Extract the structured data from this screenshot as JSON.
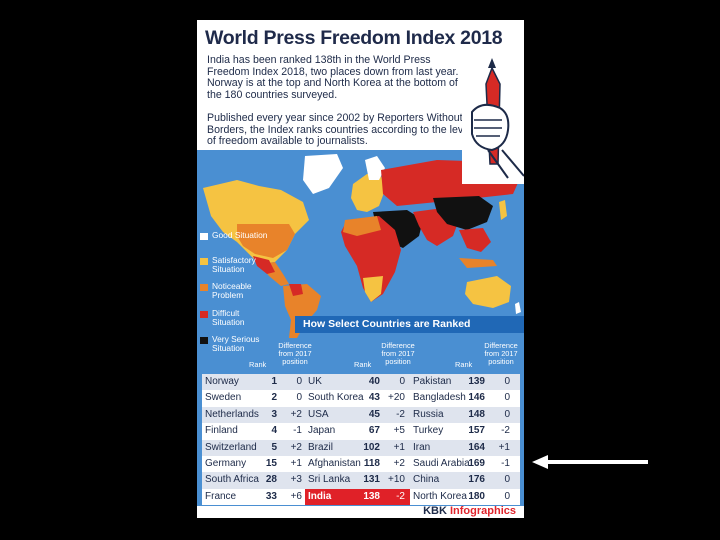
{
  "title": "World Press Freedom Index 2018",
  "intro": "India has been ranked 138th in the World Press Freedom Index 2018, two places down from last year. Norway is at the top and North Korea at the bottom of the 180 countries surveyed.",
  "description": "Published every year since 2002 by Reporters Without Borders, the Index ranks countries according to the level of freedom available to journalists.",
  "legend": [
    {
      "label": "Good Situation",
      "color": "#ffffff"
    },
    {
      "label": "Satisfactory Situation",
      "color": "#f5c342"
    },
    {
      "label": "Noticeable Problem",
      "color": "#e8832a"
    },
    {
      "label": "Difficult Situation",
      "color": "#d62a25"
    },
    {
      "label": "Very Serious Situation",
      "color": "#111111"
    }
  ],
  "select_title": "How Select Countries are Ranked",
  "column_headers": {
    "rank": "Rank",
    "difference": "Difference from 2017 position"
  },
  "table": {
    "col1": [
      {
        "country": "Norway",
        "rank": "1",
        "diff": "0"
      },
      {
        "country": "Sweden",
        "rank": "2",
        "diff": "0"
      },
      {
        "country": "Netherlands",
        "rank": "3",
        "diff": "+2"
      },
      {
        "country": "Finland",
        "rank": "4",
        "diff": "-1"
      },
      {
        "country": "Switzerland",
        "rank": "5",
        "diff": "+2"
      },
      {
        "country": "Germany",
        "rank": "15",
        "diff": "+1"
      },
      {
        "country": "South Africa",
        "rank": "28",
        "diff": "+3"
      },
      {
        "country": "France",
        "rank": "33",
        "diff": "+6"
      }
    ],
    "col2": [
      {
        "country": "UK",
        "rank": "40",
        "diff": "0"
      },
      {
        "country": "South Korea",
        "rank": "43",
        "diff": "+20"
      },
      {
        "country": "USA",
        "rank": "45",
        "diff": "-2"
      },
      {
        "country": "Japan",
        "rank": "67",
        "diff": "+5"
      },
      {
        "country": "Brazil",
        "rank": "102",
        "diff": "+1"
      },
      {
        "country": "Afghanistan",
        "rank": "118",
        "diff": "+2"
      },
      {
        "country": "Sri Lanka",
        "rank": "131",
        "diff": "+10"
      },
      {
        "country": "India",
        "rank": "138",
        "diff": "-2"
      }
    ],
    "col3": [
      {
        "country": "Pakistan",
        "rank": "139",
        "diff": "0"
      },
      {
        "country": "Bangladesh",
        "rank": "146",
        "diff": "0"
      },
      {
        "country": "Russia",
        "rank": "148",
        "diff": "0"
      },
      {
        "country": "Turkey",
        "rank": "157",
        "diff": "-2"
      },
      {
        "country": "Iran",
        "rank": "164",
        "diff": "+1"
      },
      {
        "country": "Saudi Arabia",
        "rank": "169",
        "diff": "-1"
      },
      {
        "country": "China",
        "rank": "176",
        "diff": "0"
      },
      {
        "country": "North Korea",
        "rank": "180",
        "diff": "0"
      }
    ]
  },
  "highlight_color": "#e02128",
  "brand": {
    "part1": "KBK ",
    "part2": "Infographics"
  }
}
